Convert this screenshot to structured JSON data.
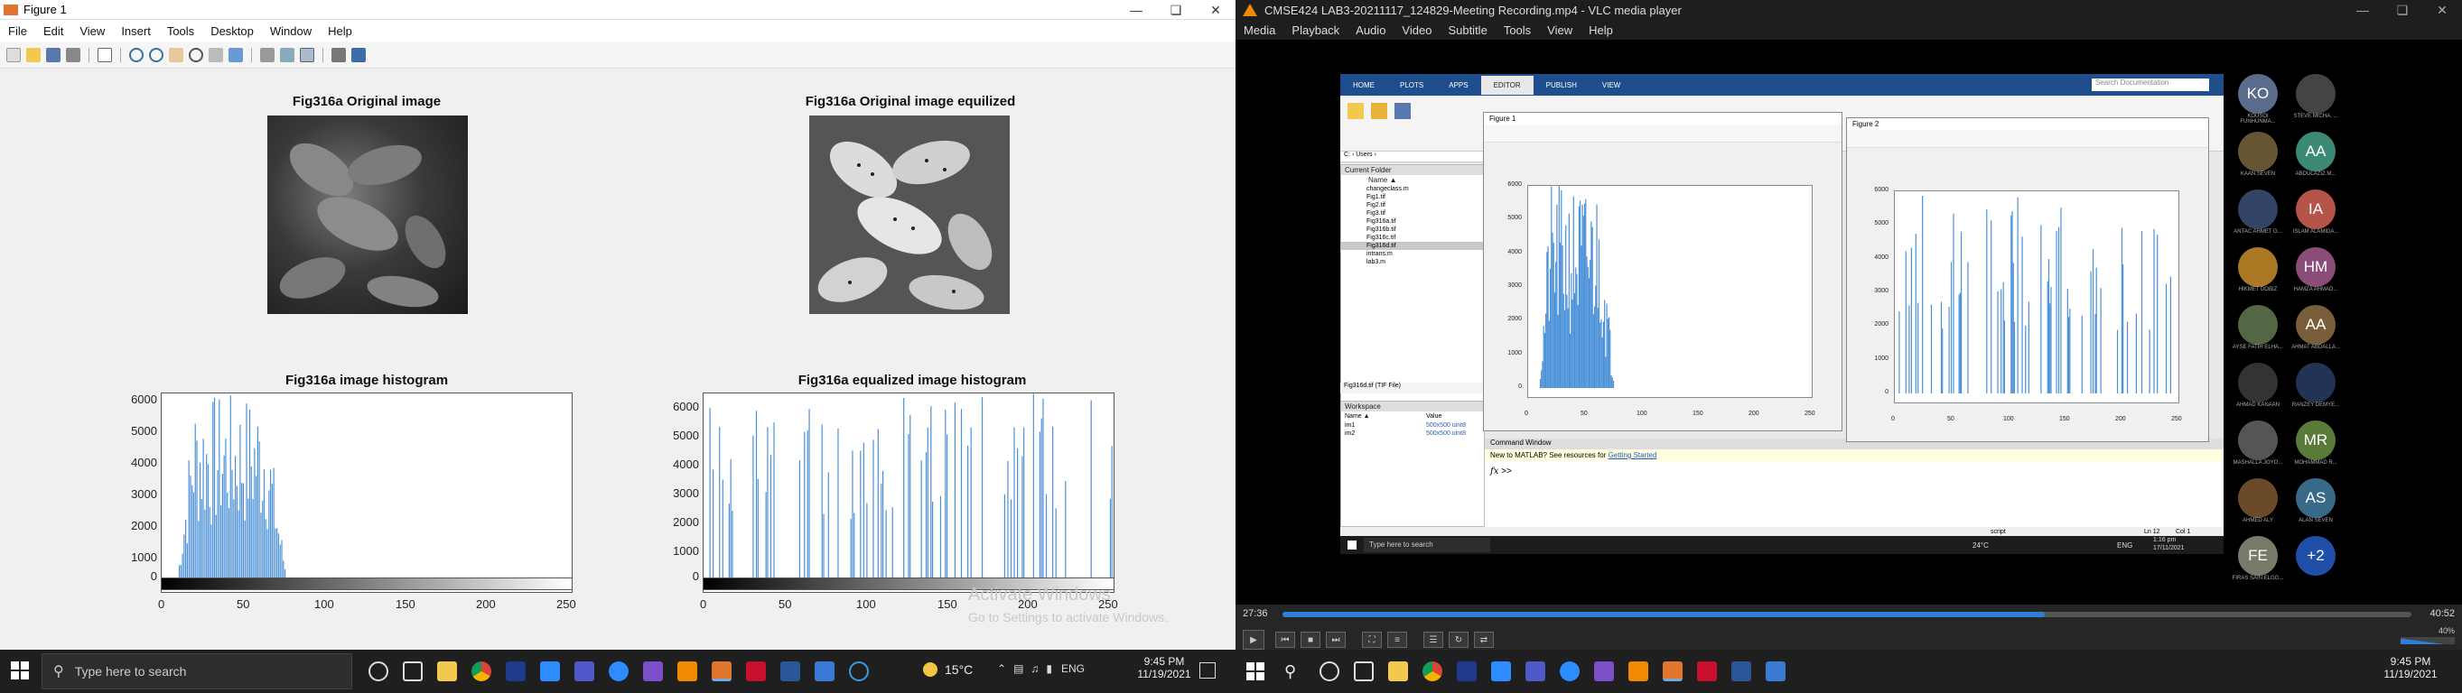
{
  "figure": {
    "title": "Figure 1",
    "menu": [
      "File",
      "Edit",
      "View",
      "Insert",
      "Tools",
      "Desktop",
      "Window",
      "Help"
    ],
    "plots": {
      "original_title": "Fig316a Original image",
      "equalized_title": "Fig316a Original image equilized",
      "hist_title": "Fig316a image histogram",
      "eqhist_title": "Fig316a equalized image histogram"
    },
    "yticks": [
      "6000",
      "5000",
      "4000",
      "3000",
      "2000",
      "1000",
      "0"
    ],
    "xticks": [
      "0",
      "50",
      "100",
      "150",
      "200",
      "250"
    ],
    "watermark1": "Activate Windows",
    "watermark2": "Go to Settings to activate Windows."
  },
  "vlc": {
    "title": "CMSE424 LAB3-20211117_124829-Meeting Recording.mp4 - VLC media player",
    "menu": [
      "Media",
      "Playback",
      "Audio",
      "Video",
      "Subtitle",
      "Tools",
      "View",
      "Help"
    ],
    "time_elapsed": "27:36",
    "time_total": "40:52",
    "progress": 0.675,
    "volume": "40%",
    "inner_time": "1:16 pm",
    "inner_date": "17/11/2021",
    "inner_temp": "24°C",
    "inner_lang": "ENG",
    "inner_search": "Type here to search"
  },
  "matlab": {
    "tabs": [
      "HOME",
      "PLOTS",
      "APPS",
      "EDITOR",
      "PUBLISH",
      "VIEW"
    ],
    "search": "Search Documentation",
    "path": "C: › Users ›",
    "current_folder": "Current Folder",
    "name_col": "Name ▲",
    "files": [
      "changeclass.m",
      "Fig1.tif",
      "Fig2.tif",
      "Fig3.tif",
      "Fig316a.tif",
      "Fig316b.tif",
      "Fig316c.tif",
      "Fig316d.tif",
      "intrans.m",
      "lab3.m"
    ],
    "selected_file": "Fig316d.tif (TIF File)",
    "workspace": "Workspace",
    "ws_name": "Name ▲",
    "ws_value": "Value",
    "vars": [
      {
        "n": "im1",
        "v": "500x500 uint8"
      },
      {
        "n": "im2",
        "v": "500x500 uint8"
      }
    ],
    "cmd_title": "Command Window",
    "cmd_notice": "New to MATLAB? See resources for ",
    "cmd_link": "Getting Started",
    "prompt": ">>",
    "status": "script",
    "ln": "Ln 12",
    "col": "Col 1",
    "fig1_title": "Figure 1",
    "fig2_title": "Figure 2",
    "f1_y": [
      "6000",
      "5000",
      "4000",
      "3000",
      "2000",
      "1000",
      "0"
    ],
    "f1_x": [
      "0",
      "50",
      "100",
      "150",
      "200",
      "250"
    ],
    "f2_y": [
      "6000",
      "5000",
      "4000",
      "3000",
      "2000",
      "1000",
      "0"
    ],
    "f2_x": [
      "0",
      "50",
      "100",
      "150",
      "200",
      "250"
    ]
  },
  "participants": [
    {
      "i": "KO",
      "n": "KOUSOI FUNHUNMA...",
      "c": "#5b6b8a"
    },
    {
      "i": "",
      "n": "STEVE MICHA. ...",
      "c": "#444"
    },
    {
      "i": "",
      "n": "KAAN SEVEN",
      "c": "#665533"
    },
    {
      "i": "AA",
      "n": "ABDULAZIZ M...",
      "c": "#3c8a75"
    },
    {
      "i": "",
      "n": "ANTAC AHMET G...",
      "c": "#334466"
    },
    {
      "i": "IA",
      "n": "ISLAM ALAMIDA...",
      "c": "#b5544a"
    },
    {
      "i": "",
      "n": "HIKMET DOBIZ",
      "c": "#aa7722"
    },
    {
      "i": "HM",
      "n": "HAMZA AHMAD...",
      "c": "#8a4d7a"
    },
    {
      "i": "",
      "n": "AYSE FATIH ELHA...",
      "c": "#556644"
    },
    {
      "i": "AA",
      "n": "AHMAT ABDALLA...",
      "c": "#7a5e3a"
    },
    {
      "i": "",
      "n": "AHMAD KANAAN",
      "c": "#333"
    },
    {
      "i": "",
      "n": "RANZEY DEMYE...",
      "c": "#223355"
    },
    {
      "i": "",
      "n": "MASHALLA JOYO...",
      "c": "#555"
    },
    {
      "i": "MR",
      "n": "MOHAMMAD R...",
      "c": "#5a7a3a"
    },
    {
      "i": "",
      "n": "AHMED ALY",
      "c": "#6b4a2a"
    },
    {
      "i": "AS",
      "n": "ALAN SEVEN",
      "c": "#3a6a8a"
    },
    {
      "i": "FE",
      "n": "FIRAS SAIN ELGG...",
      "c": "#7a7a6a"
    },
    {
      "i": "+2",
      "n": "",
      "c": "#1f4fa8"
    }
  ],
  "taskbar": {
    "search": "Type here to search",
    "temp": "15°C",
    "lang": "ENG",
    "time": "9:45 PM",
    "date": "11/19/2021",
    "time2": "9:45 PM",
    "date2": "11/19/2021"
  }
}
